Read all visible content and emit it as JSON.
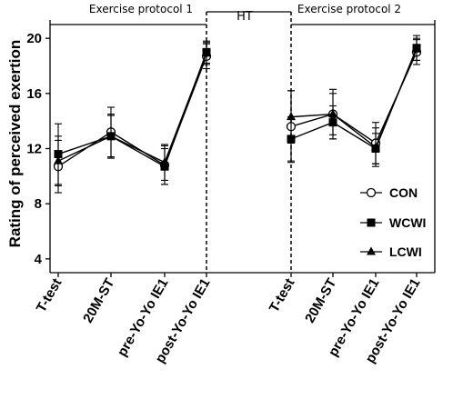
{
  "chart_data": {
    "type": "line",
    "ylabel": "Rating of perceived  exertion",
    "ylim": [
      3,
      21
    ],
    "yticks": [
      4,
      8,
      12,
      16,
      20
    ],
    "categories": [
      "T-test",
      "20M-ST",
      "pre-Yo-Yo IE1",
      "post-Yo-Yo IE1",
      "T-test",
      "20M-ST",
      "pre-Yo-Yo IE1",
      "post-Yo-Yo IE1"
    ],
    "groups": [
      {
        "label": "Exercise protocol 1",
        "indices": [
          0,
          1,
          2,
          3
        ]
      },
      {
        "label": "HT",
        "indices": []
      },
      {
        "label": "Exercise protocol 2",
        "indices": [
          4,
          5,
          6,
          7
        ]
      }
    ],
    "series": [
      {
        "name": "CON",
        "marker": "circle-open",
        "values": [
          10.7,
          13.2,
          10.8,
          18.7,
          13.6,
          14.5,
          12.4,
          19.0
        ],
        "err": [
          1.9,
          1.8,
          1.4,
          0.9,
          2.6,
          1.8,
          1.5,
          0.9
        ]
      },
      {
        "name": "WCWI",
        "marker": "square",
        "values": [
          11.6,
          12.9,
          10.7,
          19.0,
          12.7,
          13.9,
          12.0,
          19.3
        ],
        "err": [
          2.2,
          1.5,
          1.3,
          0.8,
          1.6,
          1.2,
          1.1,
          0.9
        ]
      },
      {
        "name": "LCWI",
        "marker": "triangle",
        "values": [
          11.1,
          12.9,
          11.0,
          18.9,
          14.3,
          14.5,
          12.1,
          19.2
        ],
        "err": [
          1.8,
          1.6,
          1.3,
          0.8,
          1.9,
          1.5,
          1.4,
          0.8
        ]
      }
    ],
    "legend_position": "right"
  }
}
